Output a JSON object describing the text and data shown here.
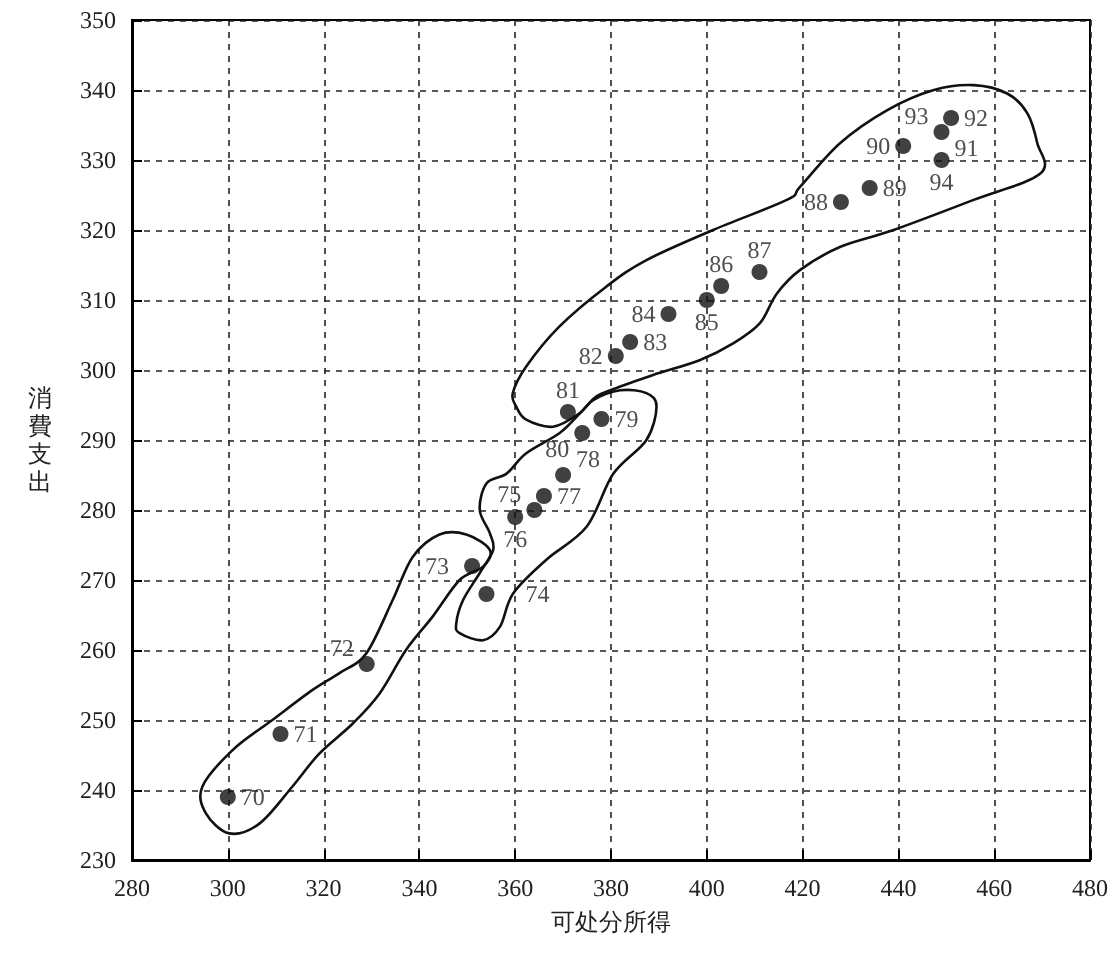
{
  "chart_data": {
    "type": "scatter",
    "xlabel": "可处分所得",
    "ylabel": "消費支出",
    "x": [
      300,
      311,
      329,
      351,
      354,
      364,
      360,
      366,
      370,
      378,
      374,
      371,
      381,
      384,
      392,
      400,
      403,
      411,
      428,
      434,
      441,
      449,
      451,
      449
    ],
    "series": [
      {
        "color": "#111111",
        "values": [
          239,
          248,
          258,
          272,
          268,
          280,
          279,
          282,
          285,
          293,
          291,
          294,
          302,
          304,
          308,
          310,
          312,
          314,
          324,
          326,
          332,
          334,
          336,
          330
        ]
      }
    ],
    "annotations": [
      {
        "text": "70",
        "x": 300,
        "y": 239
      },
      {
        "text": "71",
        "x": 311,
        "y": 248
      },
      {
        "text": "72",
        "x": 329,
        "y": 258
      },
      {
        "text": "73",
        "x": 351,
        "y": 272
      },
      {
        "text": "74",
        "x": 354,
        "y": 268
      },
      {
        "text": "75",
        "x": 364,
        "y": 280
      },
      {
        "text": "76",
        "x": 360,
        "y": 279
      },
      {
        "text": "77",
        "x": 366,
        "y": 282
      },
      {
        "text": "78",
        "x": 370,
        "y": 285
      },
      {
        "text": "79",
        "x": 378,
        "y": 293
      },
      {
        "text": "80",
        "x": 374,
        "y": 291
      },
      {
        "text": "81",
        "x": 371,
        "y": 294
      },
      {
        "text": "82",
        "x": 381,
        "y": 302
      },
      {
        "text": "83",
        "x": 384,
        "y": 304
      },
      {
        "text": "84",
        "x": 392,
        "y": 308
      },
      {
        "text": "85",
        "x": 400,
        "y": 310
      },
      {
        "text": "86",
        "x": 403,
        "y": 312
      },
      {
        "text": "87",
        "x": 411,
        "y": 314
      },
      {
        "text": "88",
        "x": 428,
        "y": 324
      },
      {
        "text": "89",
        "x": 434,
        "y": 326
      },
      {
        "text": "90",
        "x": 441,
        "y": 332
      },
      {
        "text": "91",
        "x": 449,
        "y": 334
      },
      {
        "text": "92",
        "x": 451,
        "y": 336
      },
      {
        "text": "93",
        "x": 449,
        "y": 334
      },
      {
        "text": "94",
        "x": 449,
        "y": 330
      }
    ],
    "xlim": [
      280,
      480
    ],
    "xticks": [
      280,
      300,
      320,
      340,
      360,
      380,
      400,
      420,
      440,
      460,
      480
    ],
    "ylim": [
      230,
      350
    ],
    "yticks": [
      230,
      240,
      250,
      260,
      270,
      280,
      290,
      300,
      310,
      320,
      330,
      340,
      350
    ],
    "grid": true,
    "marker": "circle"
  }
}
